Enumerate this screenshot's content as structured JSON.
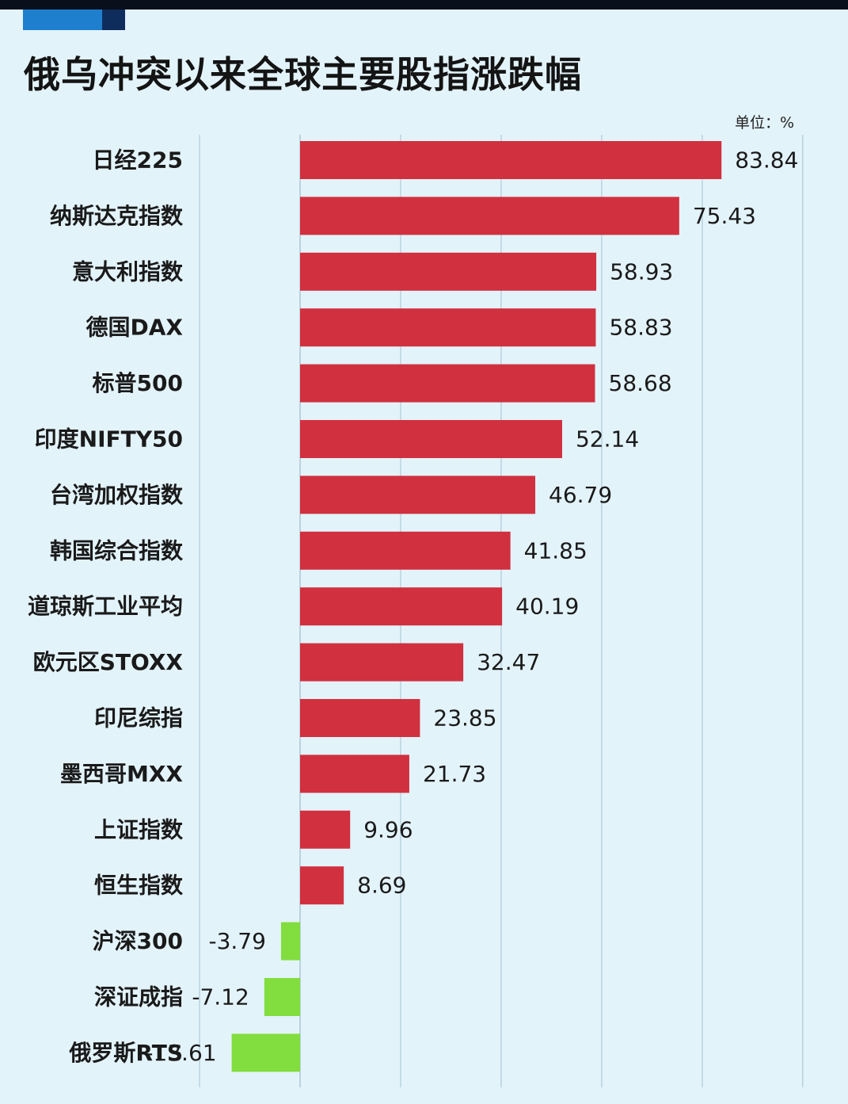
{
  "title": "俄乌冲突以来全球主要股指涨跌幅",
  "unit": "单位：%",
  "colors": {
    "positive": "#d1303f",
    "negative": "#82dd3e",
    "grid": "#b9d3df",
    "background": "#e3f3fa"
  },
  "chart_data": {
    "type": "bar",
    "orientation": "horizontal",
    "categories": [
      "日经225",
      "纳斯达克指数",
      "意大利指数",
      "德国DAX",
      "标普500",
      "印度NIFTY50",
      "台湾加权指数",
      "韩国综合指数",
      "道琼斯工业平均",
      "欧元区STOXX",
      "印尼综指",
      "墨西哥MXX",
      "上证指数",
      "恒生指数",
      "沪深300",
      "深证成指",
      "俄罗斯RTS"
    ],
    "values": [
      83.84,
      75.43,
      58.93,
      58.83,
      58.68,
      52.14,
      46.79,
      41.85,
      40.19,
      32.47,
      23.85,
      21.73,
      9.96,
      8.69,
      -3.79,
      -7.12,
      -13.61
    ],
    "labels": [
      "83.84",
      "75.43",
      "58.93",
      "58.83",
      "58.68",
      "52.14",
      "46.79",
      "41.85",
      "40.19",
      "32.47",
      "23.85",
      "21.73",
      "9.96",
      "8.69",
      "-3.79",
      "-7.12",
      "-13.61"
    ],
    "xlim": [
      -20,
      100
    ],
    "grid": true,
    "legend": false
  }
}
